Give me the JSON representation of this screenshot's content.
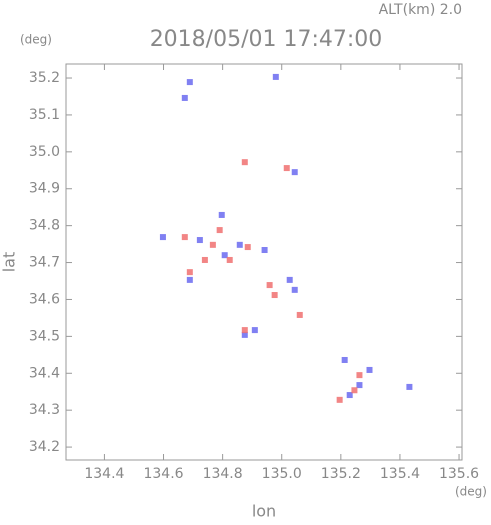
{
  "chart_data": {
    "type": "scatter",
    "title": "2018/05/01 17:47:00",
    "subtitle": "ALT(km) 2.0",
    "x_label": "lon",
    "y_label": "lat",
    "x_unit": "(deg)",
    "y_unit": "(deg)",
    "xlim": [
      134.27,
      135.61
    ],
    "ylim": [
      34.165,
      35.238
    ],
    "xticks": [
      134.4,
      134.6,
      134.8,
      {
        "value": 135,
        "label": "135.0"
      },
      135.2,
      135.4,
      135.6
    ],
    "yticks": [
      34.2,
      34.3,
      34.4,
      34.5,
      34.6,
      34.7,
      34.8,
      34.9,
      {
        "value": 35,
        "label": "35.0"
      },
      35.1,
      35.2
    ],
    "series": [
      {
        "color": "#6a6af0",
        "x": [
          134.672,
          134.689,
          134.98,
          134.797,
          134.858,
          134.942,
          135.027,
          135.044,
          134.909,
          134.875,
          135.213,
          135.263,
          135.432,
          135.297,
          134.689,
          135.044,
          134.723,
          134.807,
          135.23,
          134.598
        ],
        "values": [
          35.146,
          35.189,
          35.203,
          34.829,
          34.748,
          34.734,
          34.653,
          34.626,
          34.517,
          34.504,
          34.436,
          34.368,
          34.363,
          34.409,
          34.653,
          34.945,
          34.761,
          34.72,
          34.341,
          34.769
        ]
      },
      {
        "color": "#f07070",
        "x": [
          134.875,
          134.672,
          134.767,
          134.824,
          134.885,
          134.976,
          135.061,
          134.875,
          135.263,
          135.246,
          135.017,
          134.689,
          134.74,
          135.196,
          134.959,
          134.79
        ],
        "values": [
          34.972,
          34.769,
          34.748,
          34.707,
          34.742,
          34.612,
          34.558,
          34.517,
          34.395,
          34.354,
          34.956,
          34.674,
          34.707,
          34.328,
          34.639,
          34.788
        ]
      }
    ]
  }
}
